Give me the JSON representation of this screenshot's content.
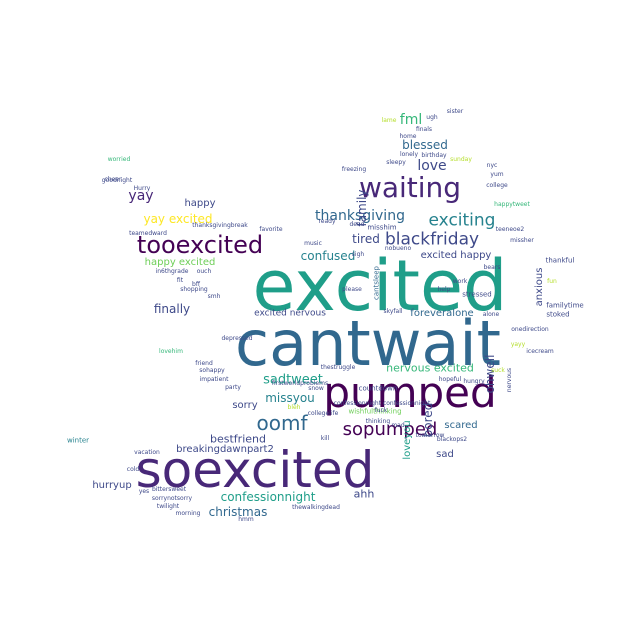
{
  "word_cloud": {
    "palette": {
      "c1": "#440154",
      "c2": "#482878",
      "c3": "#3e4989",
      "c4": "#31688e",
      "c5": "#26828e",
      "c6": "#1f9e89",
      "c7": "#35b779",
      "c8": "#6ece58",
      "c9": "#b5de2b",
      "c10": "#fde725",
      "c11": "#3b528b",
      "c12": "#21918c"
    },
    "words": {
      "excited": "excited",
      "cantwait": "cantwait",
      "soexcited": "soexcited",
      "pumped": "pumped",
      "waiting": "waiting",
      "tooexcited": "tooexcited",
      "oomf": "oomf",
      "sopumped": "sopumped",
      "exciting": "exciting",
      "blackfriday": "blackfriday",
      "thanksgiving": "thanksgiving",
      "love": "love",
      "fml": "fml",
      "blessed": "blessed",
      "yay": "yay",
      "yay_excited": "yay excited",
      "tired": "tired",
      "confused": "confused",
      "happy_excited": "happy excited",
      "finally": "finally",
      "happy": "happy",
      "excited_happy": "excited happy",
      "foreveralone": "foreveralone",
      "excited_nervous": "excited nervous",
      "nervous_excited": "nervous excited",
      "sadtweet": "sadtweet",
      "missyou": "missyou",
      "sorry": "sorry",
      "bestfriend": "bestfriend",
      "breakingdawnpart2": "breakingdawnpart2",
      "confessionnight": "confessionnight",
      "christmas": "christmas",
      "ahh": "ahh",
      "hurryup": "hurryup",
      "sad": "sad",
      "scared": "scared",
      "bored": "bored",
      "loveyou": "loveyou",
      "ohwell": "ohwell",
      "anxious": "anxious",
      "family": "family",
      "cantsleep": "cantsleep",
      "stressed": "stressed",
      "countdown": "countdown",
      "wishfulthinking": "wishfulthinking",
      "sohappy": "sohappy",
      "impatient": "impatient",
      "twilight": "twilight",
      "bittersweet": "bittersweet",
      "sorrynotsorry": "sorrynotsorry",
      "thewalkingdead": "thewalkingdead",
      "winter": "winter",
      "thankful": "thankful",
      "familytime": "familytime",
      "stoked": "stoked",
      "college": "college",
      "nyc": "nyc",
      "yum": "yum",
      "misshim": "misshim",
      "worried": "worried",
      "goodnight": "goodnight",
      "lovehim": "lovehim",
      "party": "party",
      "shopping": "shopping",
      "missher": "missher",
      "teamedward": "teamedward",
      "friend": "friend",
      "ouch": "ouch",
      "alone": "alone",
      "help": "help",
      "work": "work",
      "hungry": "hungry",
      "fun": "fun",
      "yayy": "yayy",
      "thanksgivingbreak": "thanksgivingbreak",
      "in6thgrade": "in6thgrade",
      "please": "please",
      "ready": "ready",
      "music": "music",
      "happytweet": "happytweet",
      "confessionnight_confessionnight": "confessionnight confessionnight",
      "depressed": "depressed",
      "thestruggle": "thestruggle",
      "hopeful": "hopeful",
      "tomorrow": "tomorrow",
      "bleh": "bleh",
      "thinking": "thinking",
      "vacation": "vacation",
      "morning": "morning",
      "suck": "suck",
      "fuck": "fuck",
      "college_life": "collegelife",
      "lame": "lame",
      "freezing": "freezing",
      "sigh": "sigh",
      "dead": "dead",
      "birthday": "birthday",
      "sunday": "sunday",
      "ugh": "ugh",
      "sister": "sister",
      "teeneoe2": "teeneoe2",
      "firstworldproblems": "firstworldproblems",
      "nobueno": "nobueno",
      "skyfall": "skyfall",
      "blackops2": "blackops2",
      "snow": "snow",
      "onedirection": "onedirection",
      "cold": "cold",
      "hurry": "Hurry",
      "cheer": "cheer",
      "favorite": "favorite",
      "hmm": "hmm",
      "yes": "yes",
      "kill": "kill",
      "lonely": "lonely",
      "sleepy": "sleepy",
      "finals": "finals",
      "home": "home",
      "bff": "bff",
      "fit": "fit",
      "smh": "smh",
      "icecream": "icecream",
      "nervous": "nervous",
      "mad": "mad",
      "bears": "bears"
    }
  }
}
